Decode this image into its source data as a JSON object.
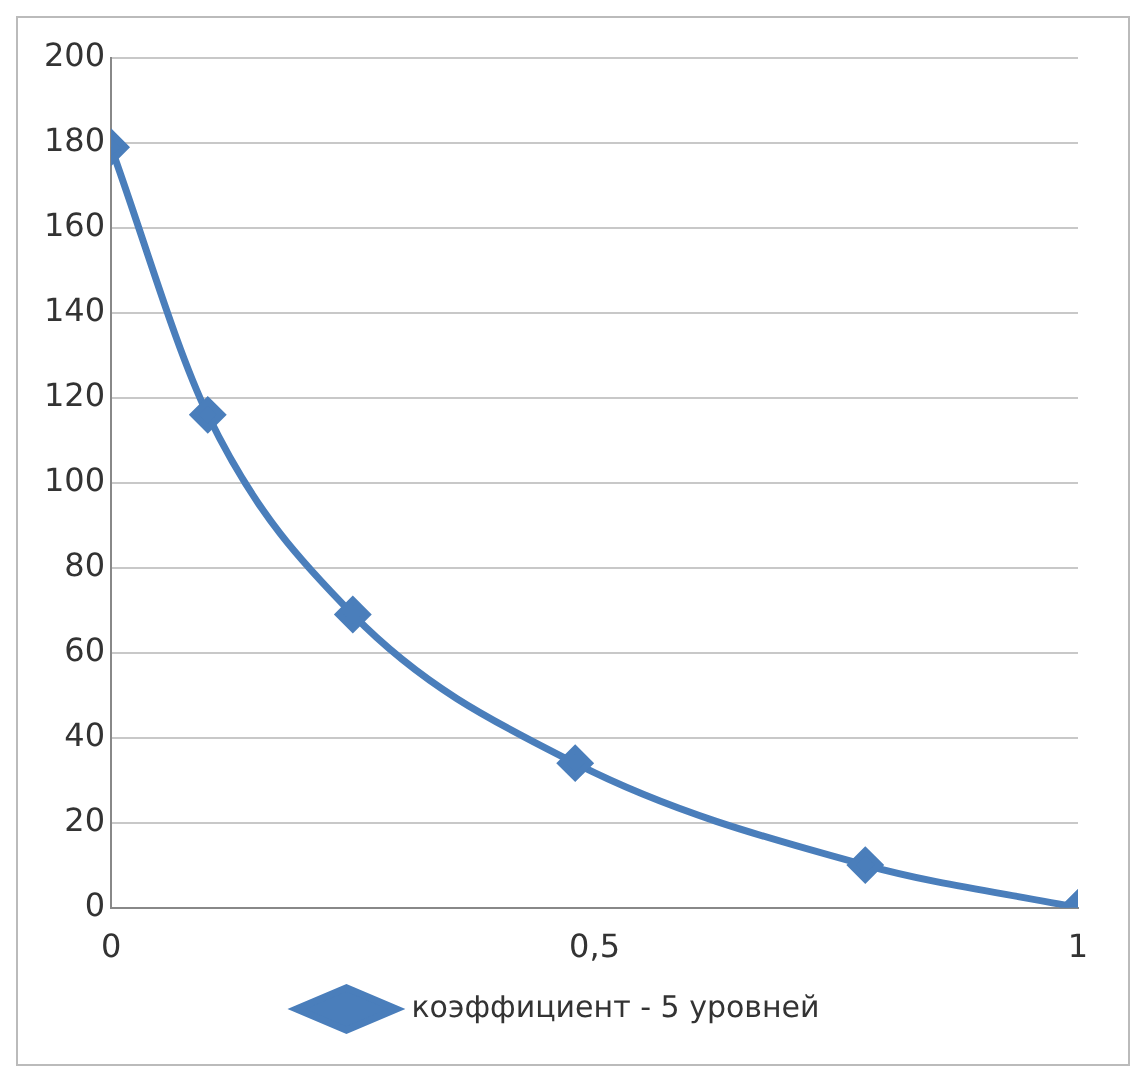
{
  "chart_data": {
    "type": "line",
    "x": [
      0,
      0.1,
      0.25,
      0.48,
      0.78,
      1
    ],
    "series": [
      {
        "name": "коэффициент - 5 уровней",
        "color": "#4a7ebb",
        "values": [
          179,
          116,
          69,
          34,
          10,
          0
        ]
      }
    ],
    "xlim": [
      0,
      1
    ],
    "xticks": [
      0,
      {
        "value": 0.5,
        "label": "0,5"
      },
      1
    ],
    "ylim": [
      0,
      200
    ],
    "yticks": [
      0,
      20,
      40,
      60,
      80,
      100,
      120,
      140,
      160,
      180,
      200
    ],
    "grid": "y",
    "legend": "bottom",
    "marker": "diamond",
    "line_style": "solid"
  }
}
